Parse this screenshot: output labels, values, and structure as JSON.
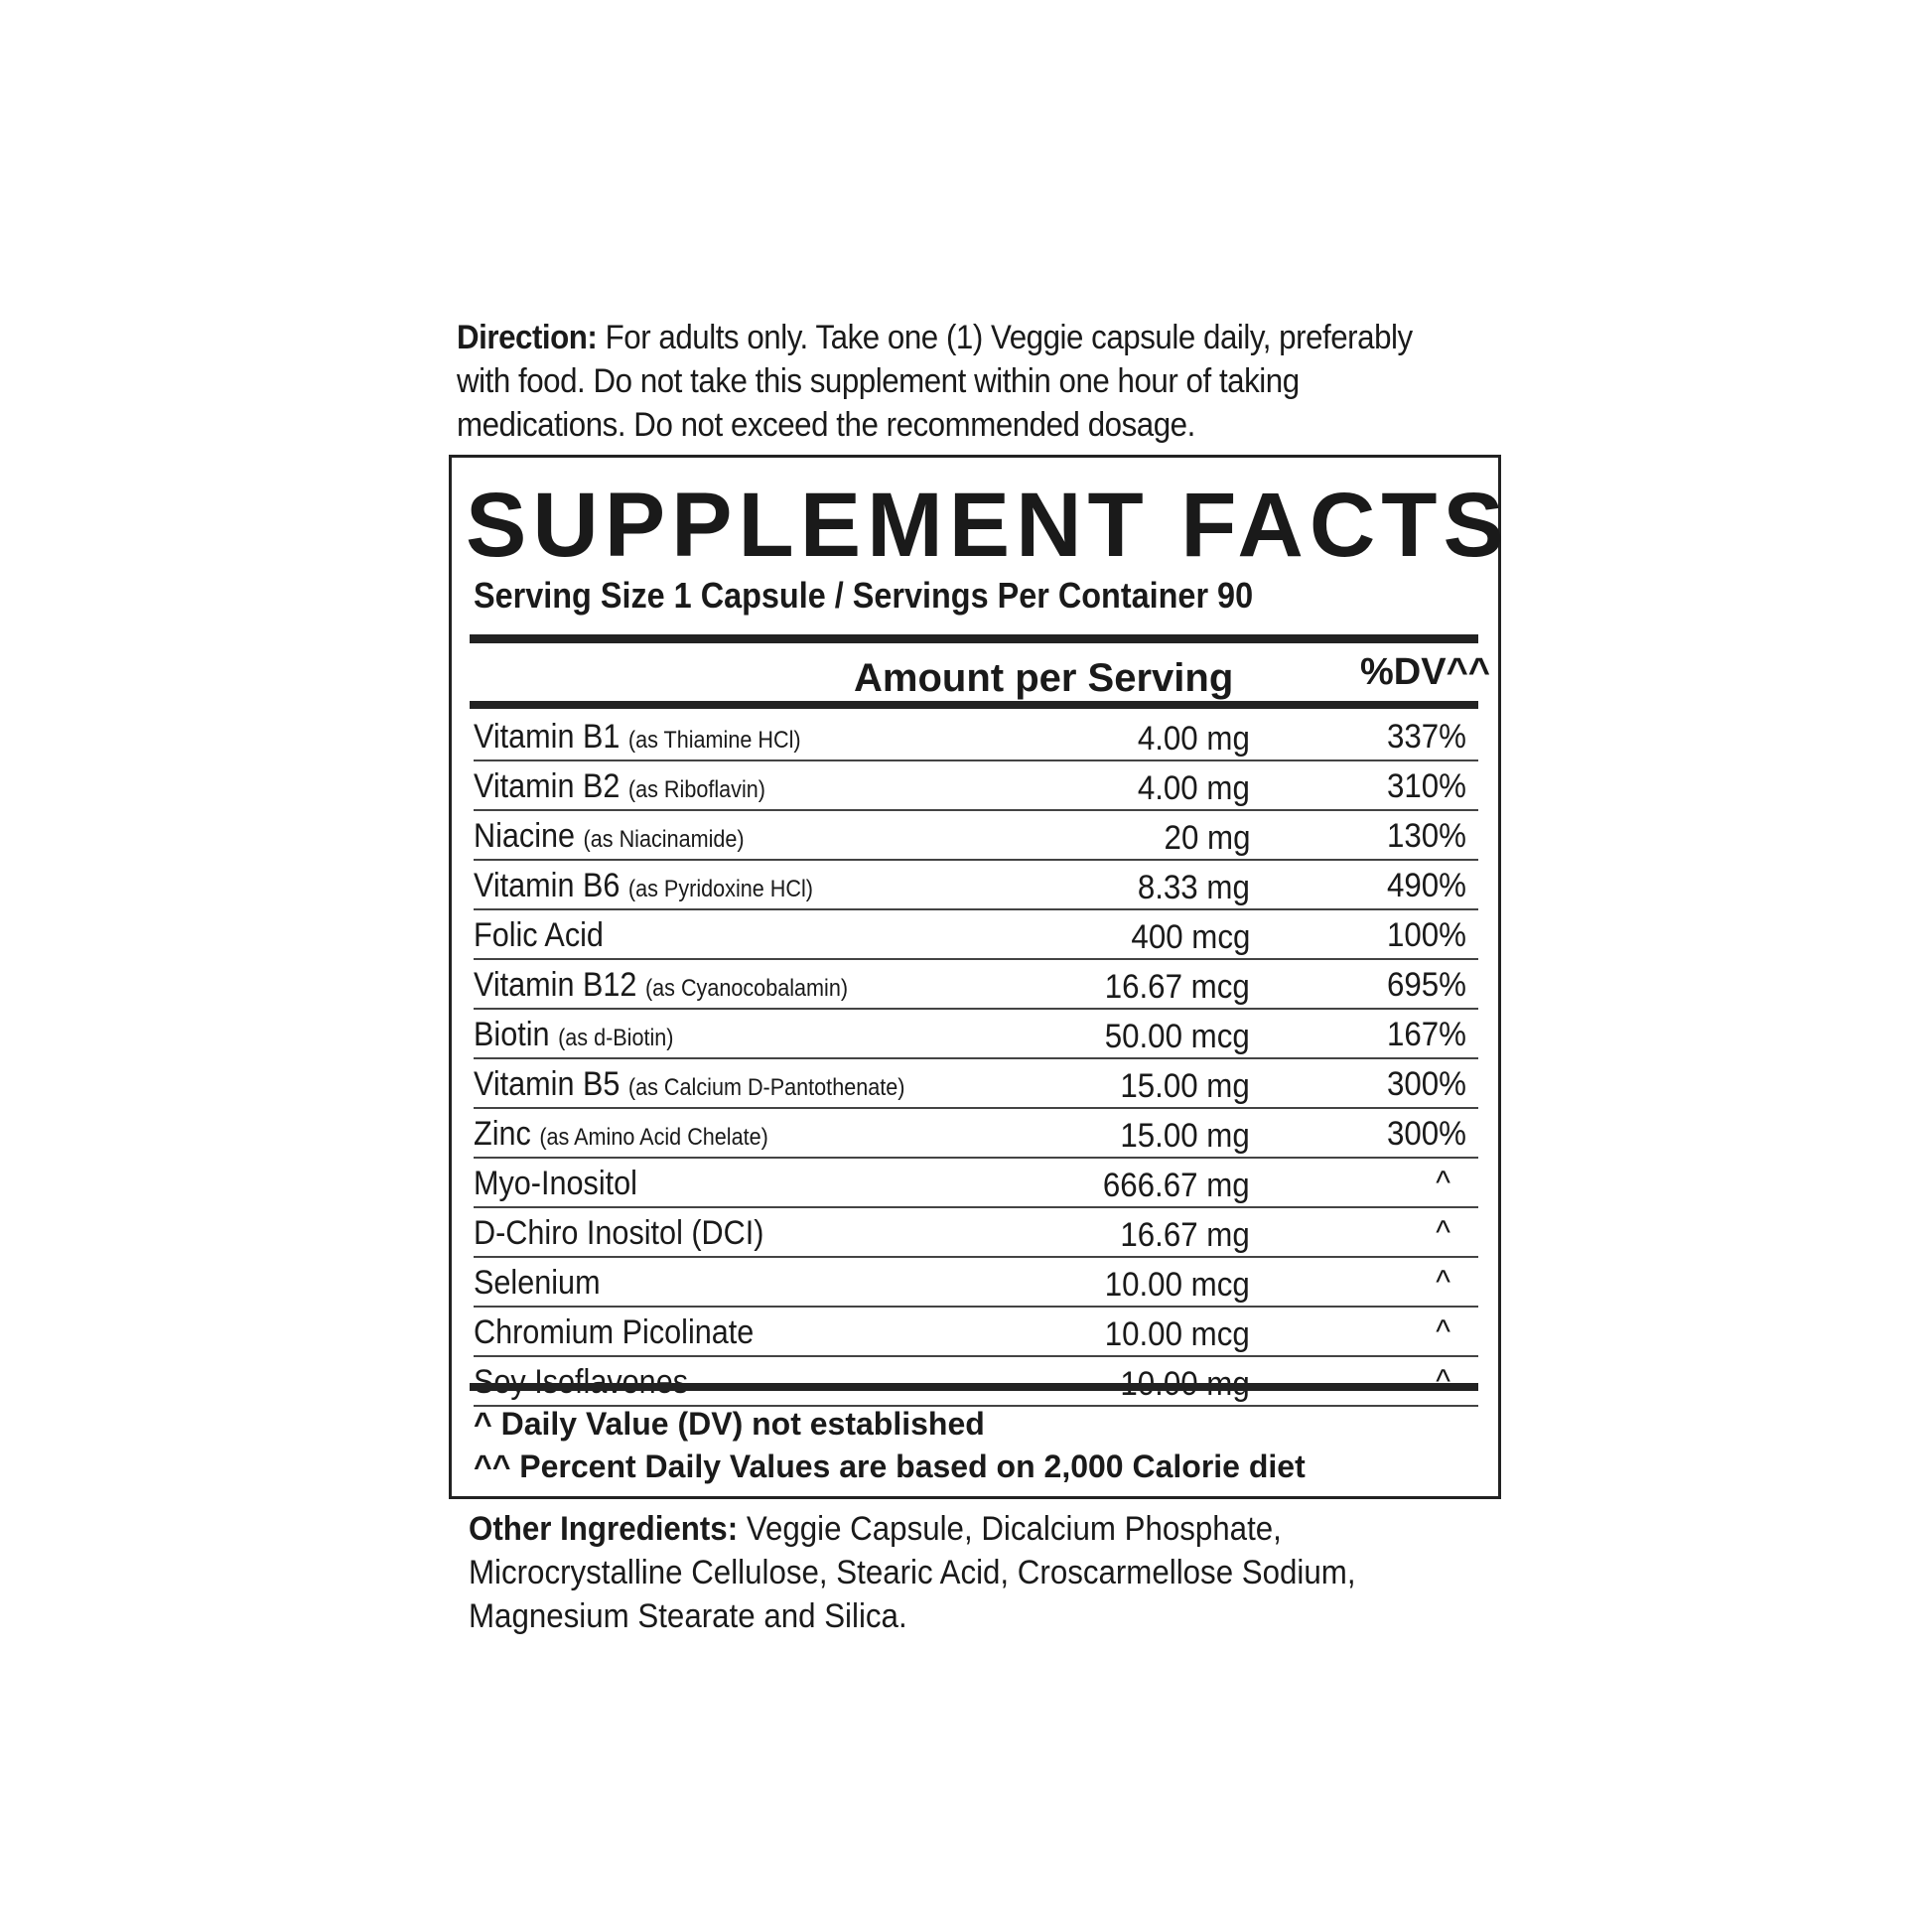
{
  "direction": {
    "label": "Direction:",
    "text": "For adults only.  Take one (1) Veggie capsule daily, preferably with food. Do not take this supplement within one  hour of taking  medications. Do not exceed the recommended  dosage."
  },
  "facts": {
    "title": "SUPPLEMENT FACTS",
    "serving": "Serving Size 1 Capsule /  Servings Per Container 90",
    "header_amount": "Amount per Serving",
    "header_dv": "%DV^^",
    "rows": [
      {
        "name": "Vitamin B1",
        "detail": "(as Thiamine HCl)",
        "amount": "4.00 mg",
        "dv": "337%"
      },
      {
        "name": "Vitamin B2",
        "detail": "(as Riboflavin)",
        "amount": "4.00 mg",
        "dv": "310%"
      },
      {
        "name": "Niacine",
        "detail": "(as Niacinamide)",
        "amount": "20 mg",
        "dv": "130%"
      },
      {
        "name": "Vitamin B6",
        "detail": "(as Pyridoxine HCl)",
        "amount": "8.33 mg",
        "dv": "490%"
      },
      {
        "name": "Folic Acid",
        "detail": "",
        "amount": "400 mcg",
        "dv": "100%"
      },
      {
        "name": "Vitamin B12",
        "detail": "(as Cyanocobalamin)",
        "amount": "16.67 mcg",
        "dv": "695%"
      },
      {
        "name": "Biotin",
        "detail": "(as d-Biotin)",
        "amount": "50.00 mcg",
        "dv": "167%"
      },
      {
        "name": "Vitamin B5",
        "detail": "(as Calcium D-Pantothenate)",
        "amount": "15.00 mg",
        "dv": "300%"
      },
      {
        "name": "Zinc",
        "detail": "(as Amino Acid Chelate)",
        "amount": "15.00 mg",
        "dv": "300%"
      },
      {
        "name": "Myo-Inositol",
        "detail": "",
        "amount": "666.67 mg",
        "dv": "^"
      },
      {
        "name": "D-Chiro Inositol (DCI)",
        "detail": "",
        "amount": "16.67 mg",
        "dv": "^"
      },
      {
        "name": "Selenium",
        "detail": "",
        "amount": "10.00 mcg",
        "dv": "^"
      },
      {
        "name": "Chromium Picolinate",
        "detail": "",
        "amount": "10.00 mcg",
        "dv": "^"
      },
      {
        "name": "Soy Isoflavones",
        "detail": "",
        "amount": "10.00 mg",
        "dv": "^"
      }
    ],
    "footnote1": "^ Daily Value (DV) not established",
    "footnote2": "^^ Percent Daily Values are based on 2,000 Calorie diet"
  },
  "other": {
    "label": "Other Ingredients:",
    "text": "Veggie Capsule, Dicalcium Phosphate, Microcrystalline Cellulose, Stearic Acid, Croscarmellose Sodium, Magnesium Stearate and Silica."
  }
}
